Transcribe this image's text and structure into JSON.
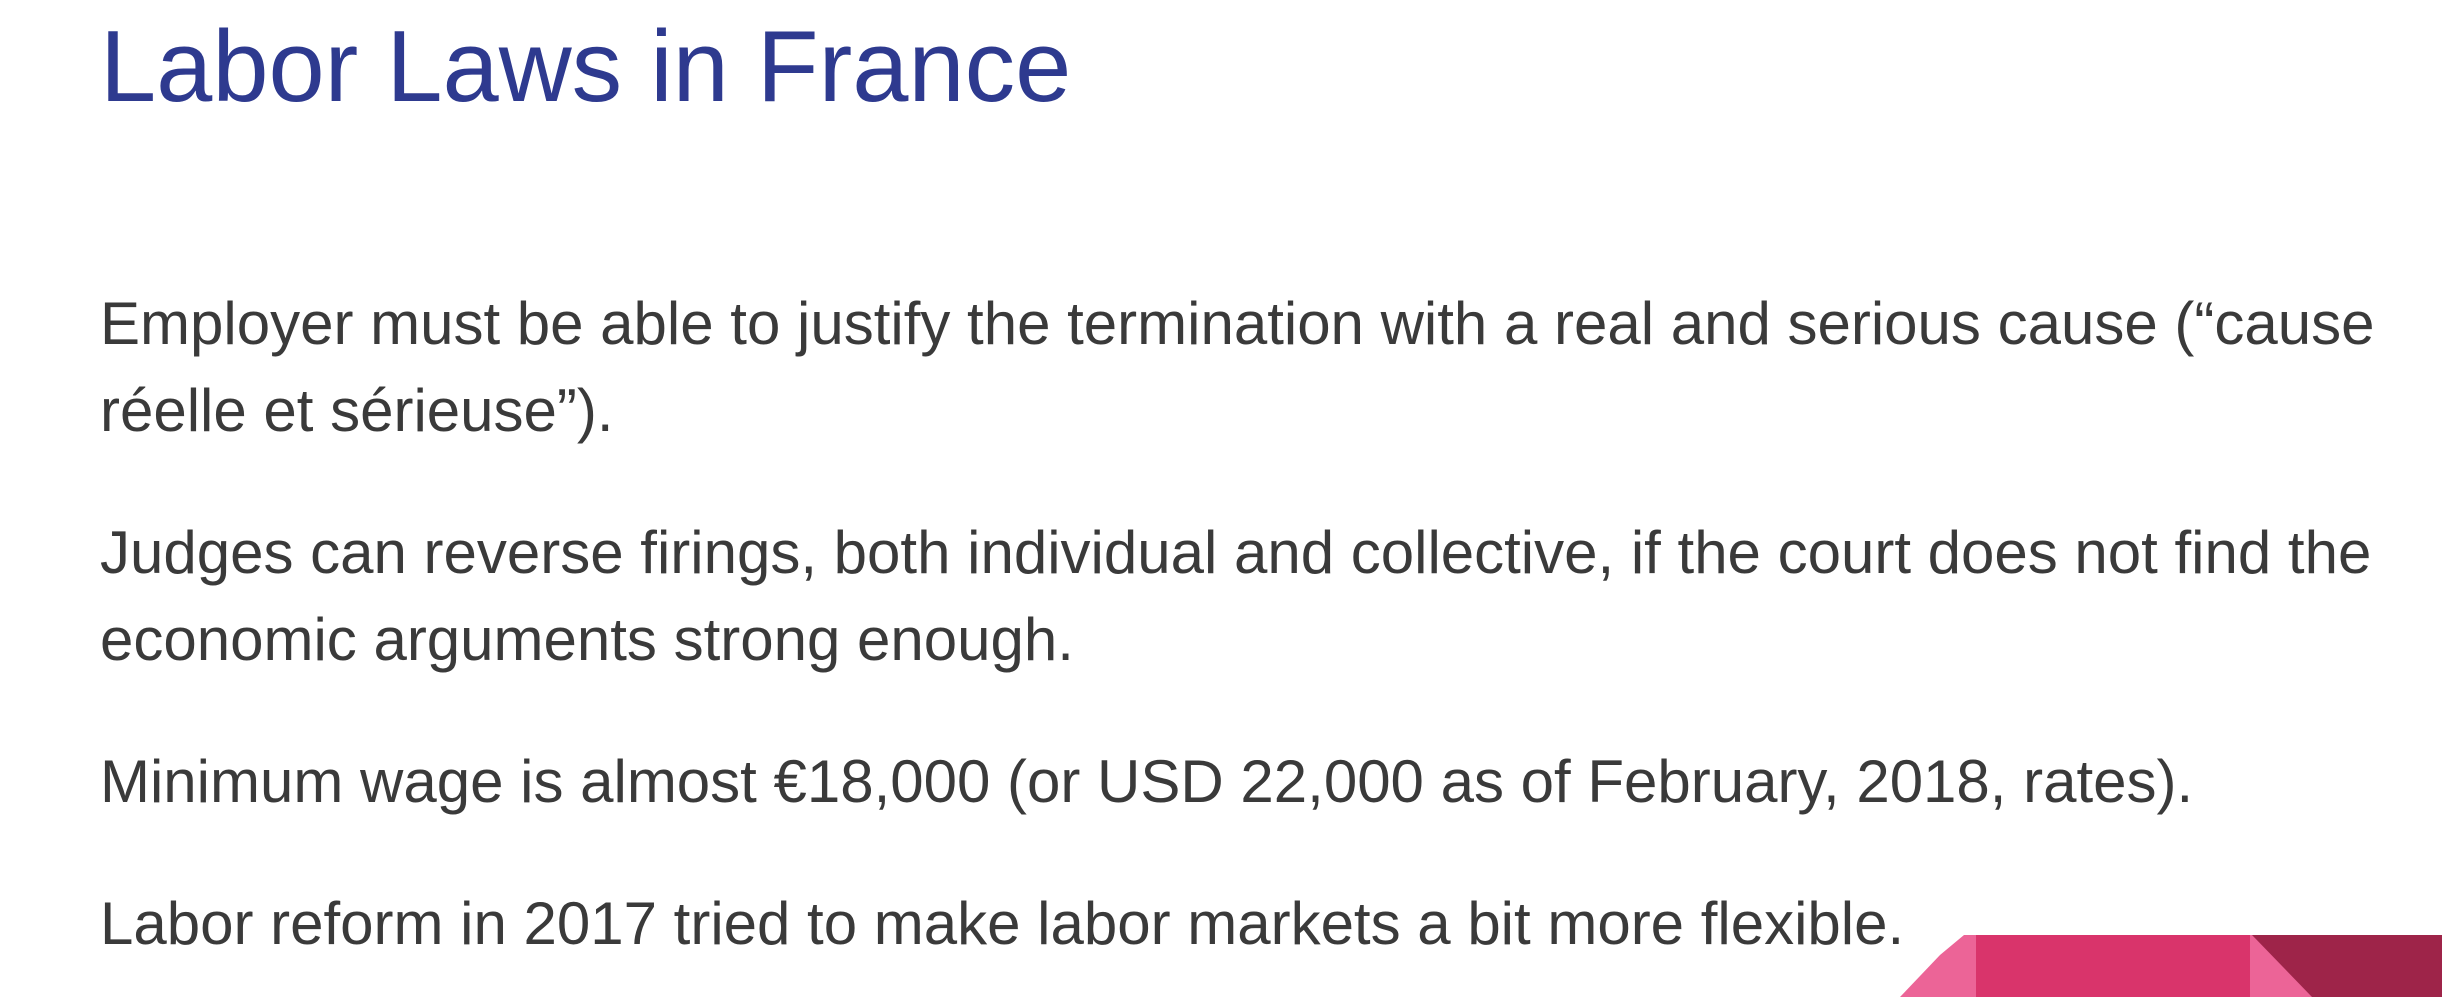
{
  "slide": {
    "title": "Labor Laws in France",
    "bullets": [
      "Employer must be able to justify the termination with a real and serious cause (“cause réelle et sérieuse”).",
      "Judges can reverse firings, both individual and collective, if the court does not find the economic arguments strong enough.",
      "Minimum wage is almost €18,000 (or USD 22,000 as of February, 2018, rates).",
      "Labor reform in 2017 tried to make labor markets a bit more flexible."
    ]
  },
  "colors": {
    "title": "#2e3a8f",
    "body_text": "#3a3a3a",
    "accent_pink_light": "#ec6497",
    "accent_pink": "#d9346b",
    "accent_maroon": "#9e2449"
  }
}
